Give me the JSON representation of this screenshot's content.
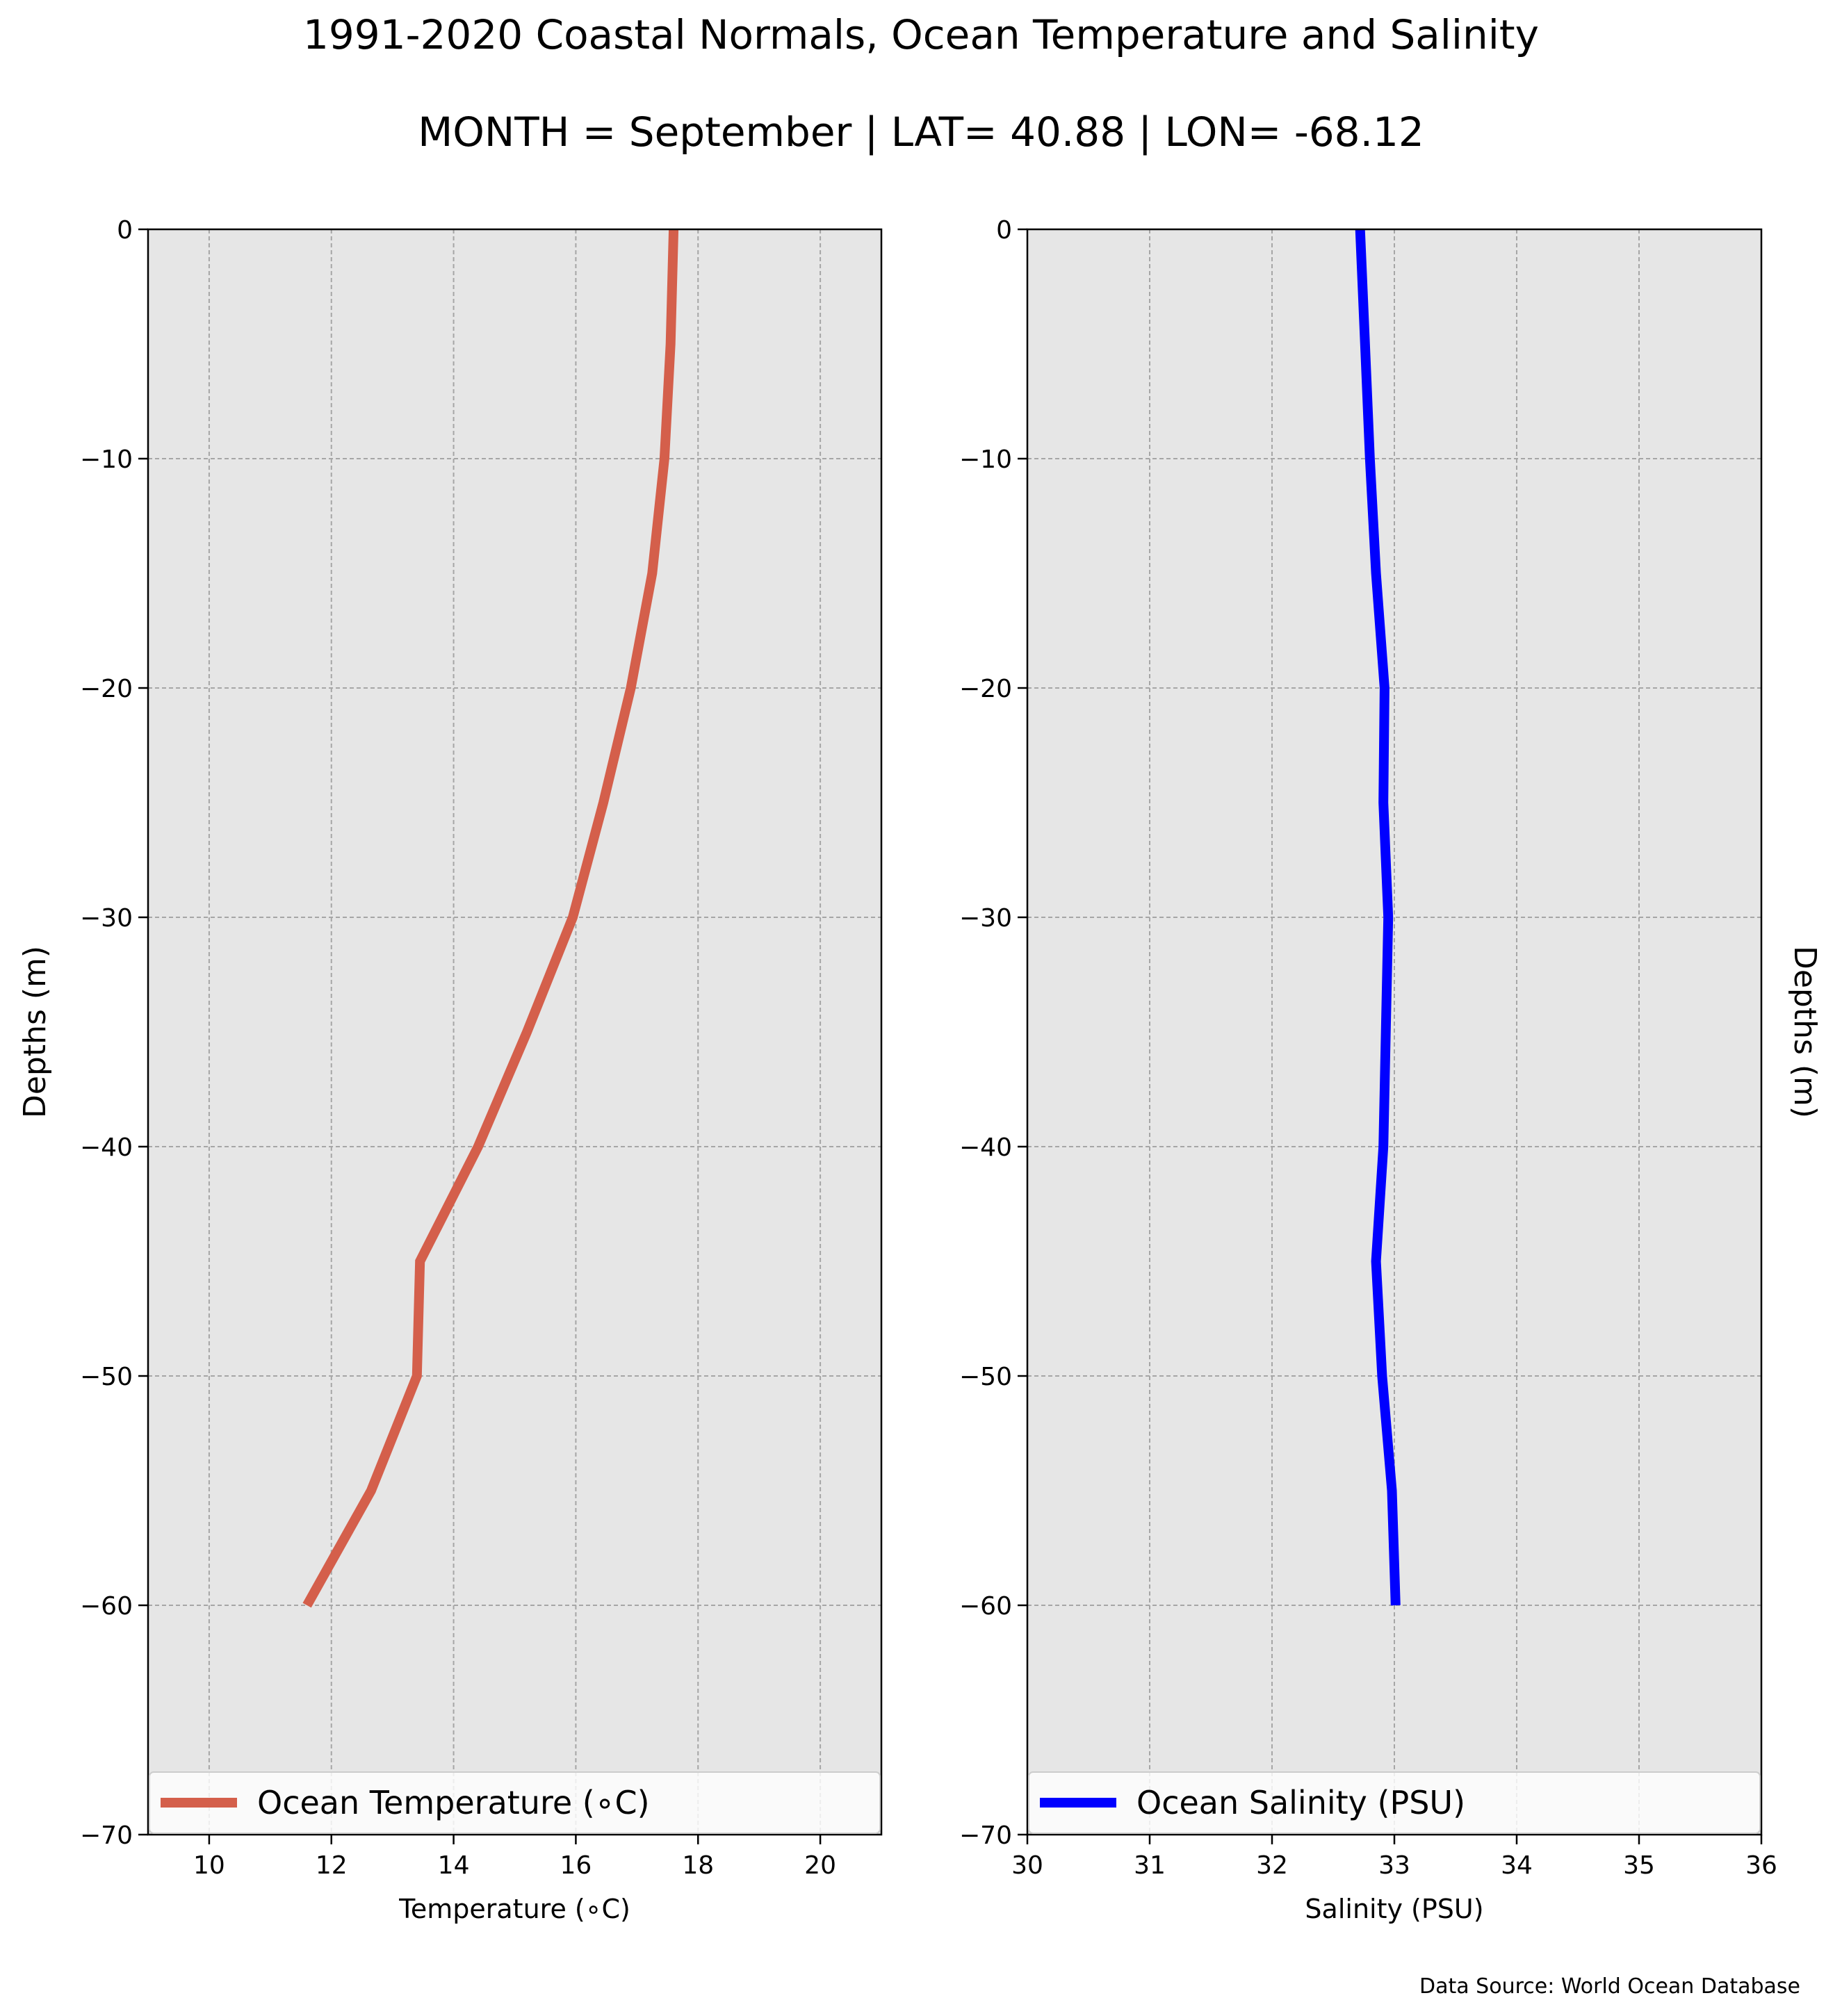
{
  "title": "1991-2020 Coastal Normals, Ocean Temperature and Salinity",
  "subtitle": "MONTH = September | LAT= 40.88 | LON= -68.12",
  "source_note": "Data Source: World Ocean Database",
  "colors": {
    "background": "#ffffff",
    "plot_background": "#e6e6e6",
    "grid": "#a6a6a6",
    "temperature_line": "#d45f4b",
    "salinity_line": "#0000ff"
  },
  "chart_data": [
    {
      "type": "line",
      "orientation": "profile",
      "xlabel": "Temperature ($^\\circ$C)",
      "xlabel_display": "Temperature (∘C)",
      "ylabel": "Depths (m)",
      "ylabel_side": "left",
      "xlim": [
        9.0,
        21.0
      ],
      "ylim": [
        -70,
        0
      ],
      "xticks": [
        10,
        12,
        14,
        16,
        18,
        20
      ],
      "yticks": [
        0,
        -10,
        -20,
        -30,
        -40,
        -50,
        -60,
        -70
      ],
      "ytick_labels": [
        "0",
        "−10",
        "−20",
        "−30",
        "−40",
        "−50",
        "−60",
        "−70"
      ],
      "grid": true,
      "legend_position": "bottom",
      "series": [
        {
          "name": "Ocean Temperature (∘C)",
          "color": "#d45f4b",
          "x": [
            17.6,
            17.55,
            17.45,
            17.25,
            16.9,
            16.45,
            15.95,
            15.2,
            14.4,
            13.45,
            13.4,
            12.65,
            11.6
          ],
          "y": [
            0,
            -5,
            -10,
            -15,
            -20,
            -25,
            -30,
            -35,
            -40,
            -45,
            -50,
            -55,
            -60
          ]
        }
      ]
    },
    {
      "type": "line",
      "orientation": "profile",
      "xlabel": "Salinity (PSU)",
      "ylabel": "Depths (m)",
      "ylabel_side": "right",
      "xlim": [
        30,
        36
      ],
      "ylim": [
        -70,
        0
      ],
      "xticks": [
        30,
        31,
        32,
        33,
        34,
        35,
        36
      ],
      "yticks": [
        0,
        -10,
        -20,
        -30,
        -40,
        -50,
        -60,
        -70
      ],
      "ytick_labels": [
        "0",
        "−10",
        "−20",
        "−30",
        "−40",
        "−50",
        "−60",
        "−70"
      ],
      "grid": true,
      "legend_position": "bottom",
      "series": [
        {
          "name": "Ocean Salinity (PSU)",
          "color": "#0000ff",
          "x": [
            32.72,
            32.76,
            32.8,
            32.85,
            32.92,
            32.91,
            32.95,
            32.93,
            32.91,
            32.85,
            32.9,
            32.98,
            33.01
          ],
          "y": [
            0,
            -5,
            -10,
            -15,
            -20,
            -25,
            -30,
            -35,
            -40,
            -45,
            -50,
            -55,
            -60
          ]
        }
      ]
    }
  ]
}
